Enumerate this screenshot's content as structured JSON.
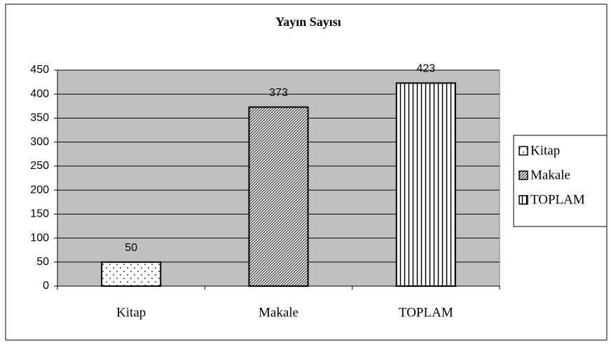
{
  "chart_data": {
    "type": "bar",
    "title": "Yayın Sayısı",
    "categories": [
      "Kitap",
      "Makale",
      "TOPLAM"
    ],
    "values": [
      50,
      373,
      423
    ],
    "patterns": [
      "dots",
      "diagonal",
      "vertical"
    ],
    "plot_color": "#c0c0c0",
    "ylim": [
      0,
      450
    ],
    "yticks": [
      0,
      50,
      100,
      150,
      200,
      250,
      300,
      350,
      400,
      450
    ],
    "grid": true,
    "legend": "right"
  }
}
